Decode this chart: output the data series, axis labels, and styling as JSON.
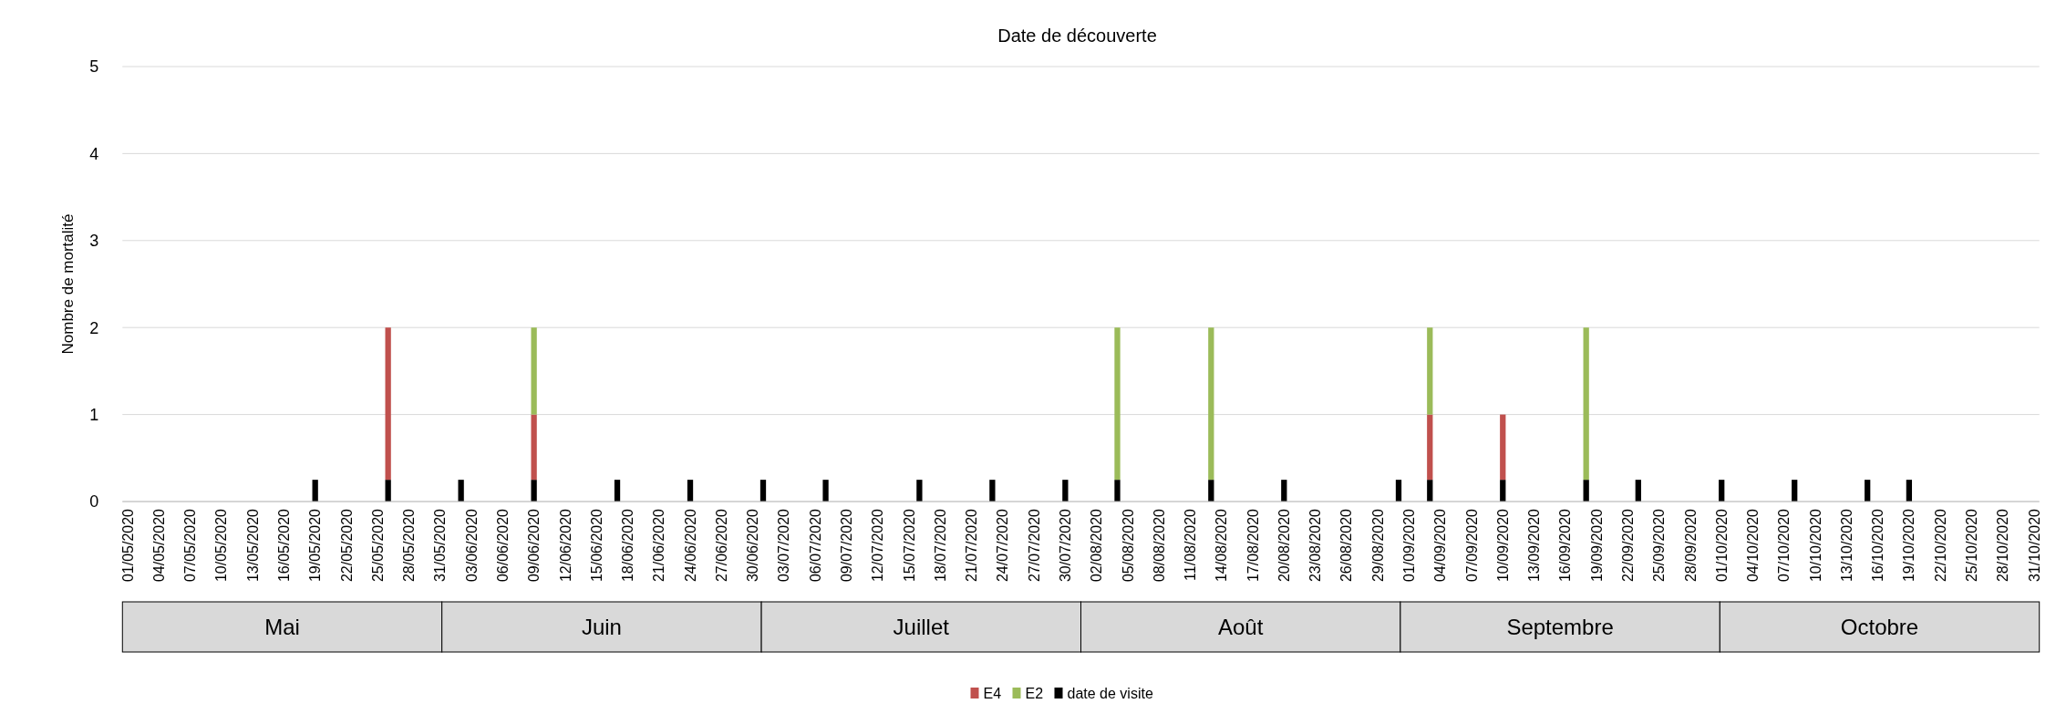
{
  "chart_data": {
    "type": "bar",
    "title": "Date de découverte",
    "ylabel": "Nombre de mortalité",
    "stacked": true,
    "grid": "y",
    "legend": "bottom",
    "ylim": [
      0,
      5
    ],
    "yticks": [
      0,
      1,
      2,
      3,
      4,
      5
    ],
    "annotations": [
      "Mai",
      "Juin",
      "Juillet",
      "Août",
      "Septembre",
      "Octobre"
    ],
    "categories": [
      "01/05/2020",
      null,
      null,
      "04/05/2020",
      null,
      null,
      "07/05/2020",
      null,
      null,
      "10/05/2020",
      null,
      null,
      "13/05/2020",
      null,
      null,
      "16/05/2020",
      null,
      null,
      "19/05/2020",
      null,
      null,
      "22/05/2020",
      null,
      null,
      "25/05/2020",
      null,
      null,
      "28/05/2020",
      null,
      null,
      "31/05/2020",
      null,
      null,
      "03/06/2020",
      null,
      null,
      "06/06/2020",
      null,
      null,
      "09/06/2020",
      null,
      null,
      "12/06/2020",
      null,
      null,
      "15/06/2020",
      null,
      null,
      "18/06/2020",
      null,
      null,
      "21/06/2020",
      null,
      null,
      "24/06/2020",
      null,
      null,
      "27/06/2020",
      null,
      null,
      "30/06/2020",
      null,
      null,
      "03/07/2020",
      null,
      null,
      "06/07/2020",
      null,
      null,
      "09/07/2020",
      null,
      null,
      "12/07/2020",
      null,
      null,
      "15/07/2020",
      null,
      null,
      "18/07/2020",
      null,
      null,
      "21/07/2020",
      null,
      null,
      "24/07/2020",
      null,
      null,
      "27/07/2020",
      null,
      null,
      "30/07/2020",
      null,
      null,
      "02/08/2020",
      null,
      null,
      "05/08/2020",
      null,
      null,
      "08/08/2020",
      null,
      null,
      "11/08/2020",
      null,
      null,
      "14/08/2020",
      null,
      null,
      "17/08/2020",
      null,
      null,
      "20/08/2020",
      null,
      null,
      "23/08/2020",
      null,
      null,
      "26/08/2020",
      null,
      null,
      "29/08/2020",
      null,
      null,
      "01/09/2020",
      null,
      null,
      "04/09/2020",
      null,
      null,
      "07/09/2020",
      null,
      null,
      "10/09/2020",
      null,
      null,
      "13/09/2020",
      null,
      null,
      "16/09/2020",
      null,
      null,
      "19/09/2020",
      null,
      null,
      "22/09/2020",
      null,
      null,
      "25/09/2020",
      null,
      null,
      "28/09/2020",
      null,
      null,
      "01/10/2020",
      null,
      null,
      "04/10/2020",
      null,
      null,
      "07/10/2020",
      null,
      null,
      "10/10/2020",
      null,
      null,
      "13/10/2020",
      null,
      null,
      "16/10/2020",
      null,
      null,
      "19/10/2020",
      null,
      null,
      "22/10/2020",
      null,
      null,
      "25/10/2020",
      null,
      null,
      "28/10/2020",
      null,
      null,
      "31/10/2020"
    ],
    "series": [
      {
        "name": "date de visite",
        "color": "#000000",
        "values": [
          0,
          0,
          0,
          0,
          0,
          0,
          0,
          0,
          0,
          0,
          0,
          0,
          0,
          0,
          0,
          0,
          0,
          0,
          0.25,
          0,
          0,
          0,
          0,
          0,
          0,
          0.25,
          0,
          0,
          0,
          0,
          0,
          0,
          0.25,
          0,
          0,
          0,
          0,
          0,
          0,
          0.25,
          0,
          0,
          0,
          0,
          0,
          0,
          0,
          0.25,
          0,
          0,
          0,
          0,
          0,
          0,
          0.25,
          0,
          0,
          0,
          0,
          0,
          0,
          0.25,
          0,
          0,
          0,
          0,
          0,
          0.25,
          0,
          0,
          0,
          0,
          0,
          0,
          0,
          0,
          0.25,
          0,
          0,
          0,
          0,
          0,
          0,
          0.25,
          0,
          0,
          0,
          0,
          0,
          0,
          0.25,
          0,
          0,
          0,
          0,
          0.25,
          0,
          0,
          0,
          0,
          0,
          0,
          0,
          0,
          0.25,
          0,
          0,
          0,
          0,
          0,
          0,
          0.25,
          0,
          0,
          0,
          0,
          0,
          0,
          0,
          0,
          0,
          0,
          0.25,
          0,
          0,
          0.25,
          0,
          0,
          0,
          0,
          0,
          0,
          0.25,
          0,
          0,
          0,
          0,
          0,
          0,
          0,
          0.25,
          0,
          0,
          0,
          0,
          0.25,
          0,
          0,
          0,
          0,
          0,
          0,
          0,
          0.25,
          0,
          0,
          0,
          0,
          0,
          0,
          0.25,
          0,
          0,
          0,
          0,
          0,
          0,
          0.25,
          0,
          0,
          0,
          0.25,
          0,
          0,
          0,
          0,
          0,
          0,
          0,
          0,
          0,
          0,
          0,
          0
        ]
      },
      {
        "name": "E4",
        "color": "#c0504d",
        "values": [
          0,
          0,
          0,
          0,
          0,
          0,
          0,
          0,
          0,
          0,
          0,
          0,
          0,
          0,
          0,
          0,
          0,
          0,
          0,
          0,
          0,
          0,
          0,
          0,
          0,
          1.75,
          0,
          0,
          0,
          0,
          0,
          0,
          0,
          0,
          0,
          0,
          0,
          0,
          0,
          0.75,
          0,
          0,
          0,
          0,
          0,
          0,
          0,
          0,
          0,
          0,
          0,
          0,
          0,
          0,
          0,
          0,
          0,
          0,
          0,
          0,
          0,
          0,
          0,
          0,
          0,
          0,
          0,
          0,
          0,
          0,
          0,
          0,
          0,
          0,
          0,
          0,
          0,
          0,
          0,
          0,
          0,
          0,
          0,
          0,
          0,
          0,
          0,
          0,
          0,
          0,
          0,
          0,
          0,
          0,
          0,
          0,
          0,
          0,
          0,
          0,
          0,
          0,
          0,
          0,
          0,
          0,
          0,
          0,
          0,
          0,
          0,
          0,
          0,
          0,
          0,
          0,
          0,
          0,
          0,
          0,
          0,
          0,
          0,
          0,
          0,
          0.75,
          0,
          0,
          0,
          0,
          0,
          0,
          0.75,
          0,
          0,
          0,
          0,
          0,
          0,
          0,
          0,
          0,
          0,
          0,
          0,
          0,
          0,
          0,
          0,
          0,
          0,
          0,
          0,
          0,
          0,
          0,
          0,
          0,
          0,
          0,
          0,
          0,
          0,
          0,
          0,
          0,
          0,
          0,
          0,
          0,
          0,
          0,
          0,
          0,
          0,
          0,
          0,
          0,
          0,
          0,
          0,
          0,
          0,
          0
        ]
      },
      {
        "name": "E2",
        "color": "#9bbb59",
        "values": [
          0,
          0,
          0,
          0,
          0,
          0,
          0,
          0,
          0,
          0,
          0,
          0,
          0,
          0,
          0,
          0,
          0,
          0,
          0,
          0,
          0,
          0,
          0,
          0,
          0,
          0,
          0,
          0,
          0,
          0,
          0,
          0,
          0,
          0,
          0,
          0,
          0,
          0,
          0,
          1,
          0,
          0,
          0,
          0,
          0,
          0,
          0,
          0,
          0,
          0,
          0,
          0,
          0,
          0,
          0,
          0,
          0,
          0,
          0,
          0,
          0,
          0,
          0,
          0,
          0,
          0,
          0,
          0,
          0,
          0,
          0,
          0,
          0,
          0,
          0,
          0,
          0,
          0,
          0,
          0,
          0,
          0,
          0,
          0,
          0,
          0,
          0,
          0,
          0,
          0,
          0,
          0,
          0,
          0,
          0,
          1.75,
          0,
          0,
          0,
          0,
          0,
          0,
          0,
          0,
          1.75,
          0,
          0,
          0,
          0,
          0,
          0,
          0,
          0,
          0,
          0,
          0,
          0,
          0,
          0,
          0,
          0,
          0,
          0,
          0,
          0,
          1,
          0,
          0,
          0,
          0,
          0,
          0,
          0,
          0,
          0,
          0,
          0,
          0,
          0,
          0,
          1.75,
          0,
          0,
          0,
          0,
          0,
          0,
          0,
          0,
          0,
          0,
          0,
          0,
          0,
          0,
          0,
          0,
          0,
          0,
          0,
          0,
          0,
          0,
          0,
          0,
          0,
          0,
          0,
          0,
          0,
          0,
          0,
          0,
          0,
          0,
          0,
          0,
          0,
          0,
          0,
          0,
          0,
          0,
          0
        ]
      }
    ]
  }
}
